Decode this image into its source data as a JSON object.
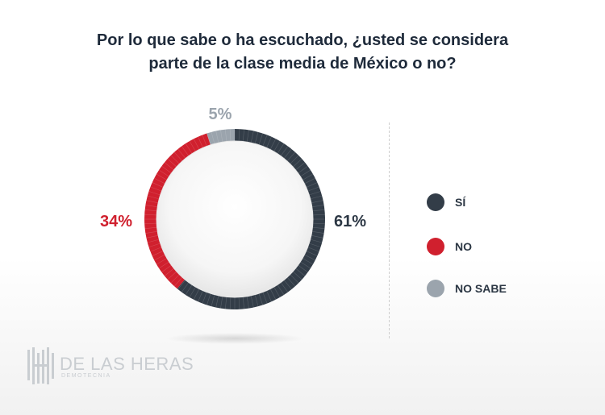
{
  "title": {
    "line1": "Por lo que sabe o ha escuchado, ¿usted se considera",
    "line2": "parte de la clase media de México o no?"
  },
  "chart_data": {
    "type": "pie",
    "style": "donut",
    "title": "Por lo que sabe o ha escuchado, ¿usted se considera parte de la clase media de México o no?",
    "series": [
      {
        "name": "SÍ",
        "value": 61,
        "label": "61%",
        "color": "#333d48"
      },
      {
        "name": "NO",
        "value": 34,
        "label": "34%",
        "color": "#d0202e"
      },
      {
        "name": "NO SABE",
        "value": 5,
        "label": "5%",
        "color": "#9ba4ad"
      }
    ],
    "legend_placement": "right"
  },
  "legend": [
    {
      "label": "SÍ",
      "color": "#333d48"
    },
    {
      "label": "NO",
      "color": "#d0202e"
    },
    {
      "label": "NO SABE",
      "color": "#9ba4ad"
    }
  ],
  "logo": {
    "name": "DE LAS HERAS",
    "sub": "DEMOTECNIA"
  }
}
